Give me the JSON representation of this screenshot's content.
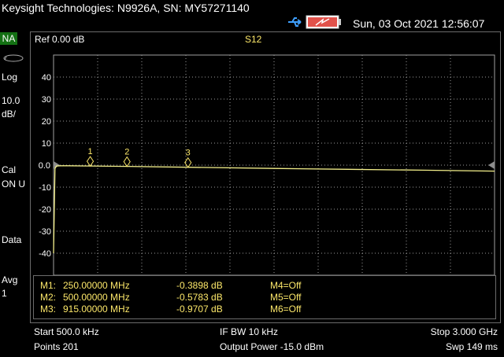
{
  "window": {
    "title": "Keysight Technologies: N9926A, SN: MY57271140",
    "datetime": "Sun, 03 Oct 2021 12:56:07",
    "icons": [
      "usb-icon",
      "battery-icon"
    ]
  },
  "sidebar": {
    "mode": "NA",
    "items": [
      "Log",
      "10.0",
      "dB/",
      "Cal",
      "ON U",
      "Data",
      "Avg",
      "1"
    ]
  },
  "display": {
    "ref": "Ref 0.00 dB",
    "trace": "S12",
    "ref_marker": "0.0",
    "trace_color": "#f3ef8a",
    "marker_color": "#fde86a"
  },
  "chart_data": {
    "type": "line",
    "x_unit": "MHz",
    "xlim": [
      0.5,
      3000
    ],
    "ylim": [
      -50,
      50
    ],
    "y_ticks": [
      40,
      30,
      20,
      10,
      0,
      -10,
      -20,
      -30,
      -40
    ],
    "grid": true,
    "series": [
      {
        "x": [
          0.5,
          10,
          20,
          50,
          100,
          250,
          500,
          915,
          1500,
          2000,
          2500,
          3000
        ],
        "y": [
          -40,
          -1.6,
          -0.4,
          -0.3,
          -0.3,
          -0.39,
          -0.58,
          -0.97,
          -1.5,
          -1.9,
          -2.3,
          -2.7
        ]
      }
    ],
    "markers": [
      {
        "label": "1",
        "x": 250,
        "y": -0.3898
      },
      {
        "label": "2",
        "x": 500,
        "y": -0.5783
      },
      {
        "label": "3",
        "x": 915,
        "y": -0.9707
      }
    ]
  },
  "marker_table": {
    "rows": [
      {
        "name": "M1:",
        "freq": "250.00000 MHz",
        "value": "-0.3898 dB",
        "other": "M4=Off"
      },
      {
        "name": "M2:",
        "freq": "500.00000 MHz",
        "value": "-0.5783 dB",
        "other": "M5=Off"
      },
      {
        "name": "M3:",
        "freq": "915.00000 MHz",
        "value": "-0.9707 dB",
        "other": "M6=Off"
      }
    ]
  },
  "status": {
    "start": "Start 500.0 kHz",
    "ifbw": "IF BW 10 kHz",
    "stop": "Stop 3.000 GHz",
    "points": "Points 201",
    "power": "Output Power -15.0 dBm",
    "sweep": "Swp 149 ms"
  }
}
